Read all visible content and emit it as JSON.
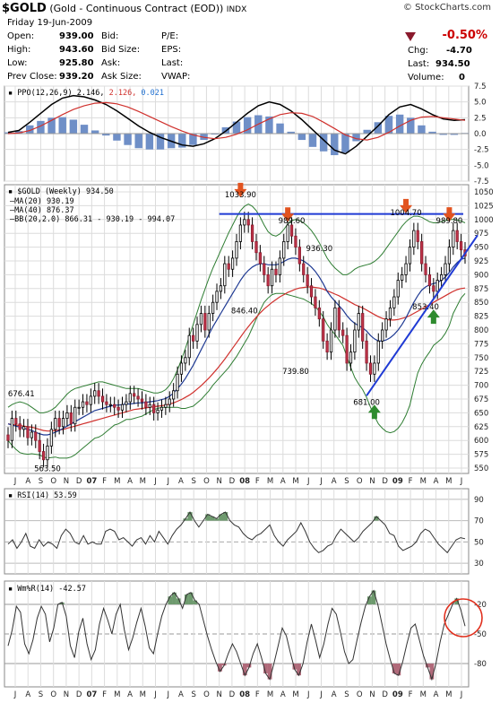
{
  "header": {
    "symbol": "$GOLD",
    "title_rest": "(Gold - Continuous Contract (EOD))",
    "exchange": "INDX",
    "date": "Friday  19-Jun-2009",
    "brand": "© StockCharts.com",
    "quote": {
      "open_label": "Open:",
      "open": "939.00",
      "high_label": "High:",
      "high": "943.60",
      "low_label": "Low:",
      "low": "925.80",
      "prev_label": "Prev Close:",
      "prev": "939.20",
      "bid_label": "Bid:",
      "bidsize_label": "Bid Size:",
      "ask_label": "Ask:",
      "asksize_label": "Ask Size:",
      "pe_label": "P/E:",
      "eps_label": "EPS:",
      "last_label": "Last:",
      "vwap_label": "VWAP:",
      "chg_pct": "-0.50%",
      "chg_label": "Chg:",
      "chg": "-4.70",
      "last2_label": "Last:",
      "last": "934.50",
      "volume_label": "Volume:",
      "volume": "0"
    }
  },
  "chart_data": [
    {
      "type": "line",
      "panel": "PPO",
      "legend": [
        "PPO(12,26,9)",
        "2.146,",
        "2.126,",
        "0.021"
      ],
      "ylim": [
        -7.5,
        7.5
      ],
      "yticks": [
        "7.5",
        "5.0",
        "2.5",
        "0.0",
        "-2.5",
        "-5.0",
        "-7.5"
      ],
      "series": [
        {
          "name": "PPO",
          "color": "#000000",
          "values": [
            0.2,
            0.5,
            1.8,
            3.2,
            4.6,
            5.6,
            6.0,
            5.8,
            5.3,
            4.6,
            3.6,
            2.4,
            1.2,
            0.2,
            -0.6,
            -1.2,
            -1.8,
            -2.0,
            -1.6,
            -0.8,
            0.4,
            1.8,
            3.2,
            4.4,
            5.0,
            4.6,
            3.6,
            2.2,
            0.6,
            -1.0,
            -2.6,
            -3.2,
            -2.0,
            -0.4,
            1.2,
            3.0,
            4.2,
            4.6,
            3.9,
            3.0,
            2.3,
            2.1,
            2.2
          ]
        },
        {
          "name": "Signal",
          "color": "#d0312d",
          "values": [
            0.0,
            0.1,
            0.5,
            1.2,
            2.1,
            3.0,
            3.8,
            4.4,
            4.8,
            4.9,
            4.7,
            4.2,
            3.5,
            2.7,
            1.9,
            1.1,
            0.4,
            -0.2,
            -0.6,
            -0.8,
            -0.6,
            -0.1,
            0.6,
            1.5,
            2.3,
            3.0,
            3.3,
            3.2,
            2.7,
            1.8,
            0.8,
            -0.2,
            -0.8,
            -1.0,
            -0.6,
            0.2,
            1.2,
            2.1,
            2.6,
            2.7,
            2.5,
            2.3,
            2.1
          ]
        }
      ],
      "histogram": [
        0.2,
        0.4,
        1.3,
        2.0,
        2.5,
        2.6,
        2.2,
        1.4,
        0.5,
        -0.3,
        -1.1,
        -1.8,
        -2.3,
        -2.5,
        -2.5,
        -2.3,
        -2.2,
        -1.8,
        -1.0,
        0.0,
        1.0,
        1.9,
        2.6,
        2.9,
        2.7,
        1.6,
        0.3,
        -1.0,
        -2.1,
        -2.8,
        -3.4,
        -3.0,
        -1.2,
        0.6,
        1.8,
        2.8,
        3.0,
        2.5,
        1.3,
        0.3,
        -0.2,
        -0.2,
        0.1
      ],
      "histogram_color": "#6f8fc7"
    },
    {
      "type": "candlestick",
      "panel": "Price",
      "title": "$GOLD (Weekly) 934.50",
      "legend": [
        {
          "text": "MA(20) 930.19",
          "color": "#1f3a93"
        },
        {
          "text": "MA(40) 876.37",
          "color": "#d0312d"
        },
        {
          "text": "BB(20,2.0) 866.31 - 930.19 - 994.07",
          "color": "#2e7d32"
        }
      ],
      "ylim": [
        550,
        1050
      ],
      "yticks": [
        "1050",
        "1025",
        "1000",
        "975",
        "950",
        "925",
        "900",
        "875",
        "850",
        "825",
        "800",
        "775",
        "750",
        "725",
        "700",
        "675",
        "650",
        "625",
        "600",
        "575",
        "550"
      ],
      "close": [
        600,
        640,
        630,
        620,
        625,
        605,
        615,
        600,
        580,
        565,
        590,
        620,
        640,
        625,
        640,
        650,
        630,
        660,
        660,
        670,
        665,
        680,
        690,
        680,
        670,
        665,
        665,
        660,
        655,
        665,
        670,
        685,
        680,
        675,
        670,
        660,
        665,
        650,
        655,
        660,
        665,
        675,
        690,
        720,
        740,
        750,
        790,
        780,
        810,
        830,
        800,
        830,
        850,
        870,
        880,
        920,
        910,
        930,
        960,
        990,
        1000,
        990,
        960,
        940,
        920,
        900,
        880,
        910,
        900,
        930,
        960,
        990,
        970,
        950,
        920,
        900,
        880,
        860,
        840,
        820,
        780,
        760,
        800,
        840,
        800,
        790,
        740,
        760,
        800,
        830,
        780,
        740,
        720,
        740,
        780,
        800,
        820,
        840,
        860,
        890,
        900,
        920,
        950,
        980,
        960,
        920,
        900,
        880,
        870,
        890,
        900,
        920,
        950,
        980,
        960,
        945,
        934
      ],
      "ma20": [
        630,
        628,
        626,
        624,
        622,
        620,
        618,
        615,
        612,
        610,
        610,
        612,
        615,
        618,
        622,
        626,
        630,
        634,
        638,
        642,
        646,
        650,
        654,
        656,
        658,
        660,
        662,
        664,
        664,
        665,
        666,
        666,
        667,
        668,
        668,
        669,
        670,
        671,
        672,
        674,
        676,
        680,
        686,
        694,
        702,
        712,
        724,
        736,
        750,
        764,
        778,
        792,
        806,
        818,
        830,
        842,
        854,
        866,
        878,
        890,
        900,
        908,
        914,
        918,
        920,
        920,
        918,
        918,
        918,
        920,
        924,
        928,
        930,
        930,
        928,
        925,
        920,
        914,
        906,
        896,
        884,
        870,
        860,
        852,
        844,
        836,
        826,
        818,
        812,
        808,
        804,
        798,
        790,
        784,
        780,
        780,
        782,
        786,
        792,
        800,
        810,
        822,
        836,
        850,
        862,
        872,
        878,
        882,
        884,
        886,
        890,
        896,
        904,
        914,
        922,
        928,
        930
      ],
      "ma40": [
        630,
        629,
        628,
        627,
        626,
        625,
        624,
        622,
        620,
        618,
        617,
        617,
        618,
        619,
        620,
        622,
        624,
        626,
        628,
        630,
        632,
        634,
        636,
        638,
        640,
        642,
        644,
        646,
        648,
        650,
        652,
        654,
        656,
        657,
        658,
        659,
        660,
        661,
        662,
        663,
        664,
        666,
        668,
        671,
        674,
        678,
        682,
        687,
        693,
        699,
        706,
        713,
        721,
        729,
        738,
        747,
        757,
        767,
        777,
        787,
        797,
        806,
        815,
        823,
        831,
        838,
        844,
        850,
        855,
        860,
        864,
        868,
        871,
        874,
        876,
        877,
        878,
        878,
        877,
        876,
        874,
        871,
        868,
        865,
        862,
        858,
        854,
        850,
        846,
        843,
        840,
        836,
        832,
        828,
        824,
        821,
        819,
        818,
        818,
        819,
        821,
        823,
        826,
        830,
        834,
        838,
        842,
        846,
        850,
        854,
        858,
        862,
        866,
        870,
        873,
        875,
        876
      ],
      "bb_upper": [
        660,
        665,
        668,
        670,
        668,
        665,
        660,
        655,
        650,
        650,
        652,
        655,
        660,
        668,
        676,
        684,
        690,
        694,
        696,
        698,
        700,
        702,
        704,
        706,
        706,
        704,
        702,
        700,
        698,
        696,
        694,
        694,
        694,
        694,
        692,
        690,
        688,
        686,
        686,
        688,
        692,
        700,
        712,
        728,
        746,
        766,
        788,
        810,
        832,
        854,
        874,
        894,
        912,
        928,
        944,
        960,
        976,
        990,
        1004,
        1016,
        1024,
        1028,
        1024,
        1016,
        1004,
        990,
        978,
        972,
        970,
        974,
        982,
        992,
        998,
        1000,
        998,
        994,
        988,
        980,
        970,
        958,
        944,
        930,
        920,
        912,
        906,
        900,
        900,
        904,
        910,
        914,
        916,
        918,
        920,
        924,
        930,
        938,
        948,
        958,
        968,
        978,
        988,
        996,
        1002,
        1006,
        1006,
        1004,
        1000,
        996,
        994,
        994,
        996,
        998,
        1000,
        1000,
        999,
        997,
        994
      ],
      "bb_lower": [
        600,
        591,
        584,
        578,
        576,
        575,
        576,
        575,
        574,
        570,
        568,
        569,
        570,
        568,
        568,
        568,
        570,
        574,
        580,
        586,
        592,
        598,
        604,
        606,
        610,
        616,
        622,
        628,
        630,
        634,
        638,
        638,
        640,
        642,
        644,
        648,
        652,
        656,
        658,
        660,
        660,
        660,
        660,
        660,
        658,
        658,
        660,
        662,
        668,
        674,
        682,
        690,
        700,
        708,
        716,
        724,
        732,
        742,
        752,
        764,
        776,
        788,
        804,
        820,
        836,
        850,
        858,
        864,
        866,
        866,
        866,
        864,
        862,
        860,
        858,
        856,
        852,
        848,
        842,
        834,
        824,
        810,
        800,
        792,
        782,
        772,
        752,
        732,
        714,
        702,
        692,
        678,
        660,
        644,
        630,
        622,
        616,
        614,
        616,
        622,
        632,
        646,
        664,
        694,
        722,
        738,
        750,
        760,
        772,
        778,
        784,
        794,
        808,
        830,
        844,
        858,
        866
      ],
      "resistance_line": {
        "y": 1010,
        "color": "#1f3ad4"
      },
      "support_line": {
        "from": {
          "x_index": 91,
          "y": 681
        },
        "to": {
          "x_index": 116,
          "y": 965
        },
        "color": "#1f3ad4"
      },
      "annotations": [
        "1033.90",
        "989.60",
        "1004.70",
        "989.80",
        "936.30",
        "846.40",
        "739.80",
        "681.00",
        "853.40",
        "563.50",
        "676.41"
      ],
      "down_arrows": [
        {
          "x_index": 59,
          "y": 1033.9
        },
        {
          "x_index": 71,
          "y": 989.6
        },
        {
          "x_index": 101,
          "y": 1004.7
        },
        {
          "x_index": 112,
          "y": 989.8
        }
      ],
      "up_arrows": [
        {
          "x_index": 93,
          "y": 681
        },
        {
          "x_index": 108,
          "y": 853.4
        }
      ]
    },
    {
      "type": "line",
      "panel": "RSI",
      "legend": "RSI(14) 53.59",
      "ylim": [
        20,
        100
      ],
      "yticks": [
        "90",
        "70",
        "50",
        "30"
      ],
      "values": [
        48,
        52,
        44,
        50,
        58,
        46,
        44,
        52,
        46,
        50,
        48,
        44,
        56,
        62,
        58,
        50,
        48,
        56,
        48,
        50,
        48,
        48,
        60,
        62,
        60,
        52,
        54,
        50,
        46,
        52,
        54,
        48,
        56,
        50,
        60,
        54,
        48,
        56,
        62,
        66,
        72,
        78,
        70,
        64,
        70,
        76,
        74,
        72,
        76,
        78,
        70,
        66,
        64,
        58,
        54,
        52,
        56,
        58,
        62,
        66,
        56,
        50,
        46,
        52,
        56,
        60,
        68,
        60,
        50,
        44,
        40,
        42,
        46,
        48,
        56,
        62,
        58,
        54,
        50,
        54,
        60,
        64,
        68,
        74,
        70,
        66,
        58,
        56,
        46,
        42,
        44,
        46,
        50,
        58,
        62,
        60,
        54,
        48,
        44,
        40,
        46,
        52,
        54,
        53
      ]
    },
    {
      "type": "line",
      "panel": "WilliamsR",
      "legend": "Wm%R(14) -42.57",
      "ylim": [
        -100,
        0
      ],
      "yticks": [
        "-20",
        "-50",
        "-80"
      ],
      "values": [
        -62,
        -46,
        -22,
        -28,
        -60,
        -70,
        -56,
        -34,
        -22,
        -30,
        -58,
        -44,
        -20,
        -18,
        -32,
        -62,
        -74,
        -48,
        -34,
        -60,
        -76,
        -66,
        -40,
        -24,
        -36,
        -50,
        -30,
        -20,
        -46,
        -66,
        -54,
        -38,
        -24,
        -42,
        -64,
        -70,
        -50,
        -32,
        -20,
        -12,
        -8,
        -14,
        -24,
        -10,
        -8,
        -16,
        -20,
        -36,
        -52,
        -66,
        -78,
        -88,
        -82,
        -70,
        -60,
        -68,
        -80,
        -92,
        -84,
        -70,
        -60,
        -74,
        -90,
        -96,
        -80,
        -62,
        -44,
        -52,
        -70,
        -86,
        -92,
        -80,
        -58,
        -40,
        -56,
        -74,
        -60,
        -40,
        -24,
        -30,
        -48,
        -68,
        -80,
        -76,
        -56,
        -38,
        -22,
        -12,
        -6,
        -20,
        -40,
        -60,
        -76,
        -90,
        -92,
        -78,
        -60,
        -44,
        -40,
        -56,
        -72,
        -84,
        -96,
        -80,
        -58,
        -40,
        -30,
        -20,
        -14,
        -26,
        -42
      ]
    }
  ],
  "x_axis": {
    "labels": [
      "J",
      "A",
      "S",
      "O",
      "N",
      "D",
      "07",
      "F",
      "M",
      "A",
      "M",
      "J",
      "J",
      "A",
      "S",
      "O",
      "N",
      "D",
      "08",
      "F",
      "M",
      "A",
      "M",
      "J",
      "J",
      "A",
      "S",
      "O",
      "N",
      "D",
      "09",
      "F",
      "M",
      "A",
      "M",
      "J"
    ],
    "bold": [
      "07",
      "08",
      "09"
    ]
  },
  "highlight_circle": {
    "color": "#e0301e"
  }
}
